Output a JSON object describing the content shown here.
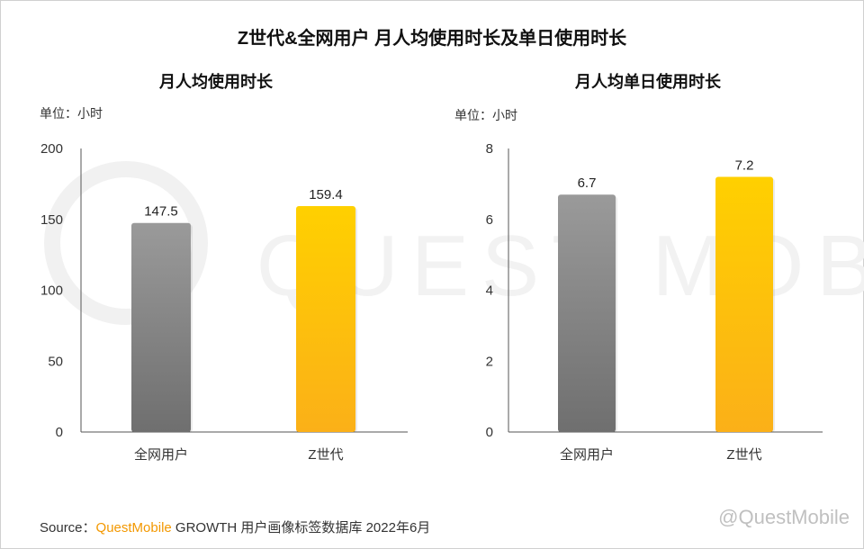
{
  "title": "Z世代&全网用户 月人均使用时长及单日使用时长",
  "watermark_text": "QUEST MOBILE",
  "source": {
    "prefix": "Source：",
    "brand": "QuestMobile",
    "text": " GROWTH 用户画像标签数据库 2022年6月"
  },
  "corner_watermark": "@QuestMobile",
  "colors": {
    "gray_top": "#9a9a9a",
    "gray_bottom": "#6f6f6f",
    "gold_top": "#ffd000",
    "gold_bottom": "#fbb018",
    "axis": "#555555",
    "brand": "#f39800"
  },
  "chart_data": [
    {
      "type": "bar",
      "title": "月人均使用时长",
      "unit": "单位：小时",
      "categories": [
        "全网用户",
        "Z世代"
      ],
      "values": [
        147.5,
        159.4
      ],
      "value_labels": [
        "147.5",
        "159.4"
      ],
      "ylim": [
        0,
        200
      ],
      "yticks": [
        0,
        50,
        100,
        150,
        200
      ],
      "grid": false,
      "legend": "none"
    },
    {
      "type": "bar",
      "title": "月人均单日使用时长",
      "unit": "单位：小时",
      "categories": [
        "全网用户",
        "Z世代"
      ],
      "values": [
        6.7,
        7.2
      ],
      "value_labels": [
        "6.7",
        "7.2"
      ],
      "ylim": [
        0,
        8
      ],
      "yticks": [
        0,
        2,
        4,
        6,
        8
      ],
      "grid": false,
      "legend": "none"
    }
  ]
}
